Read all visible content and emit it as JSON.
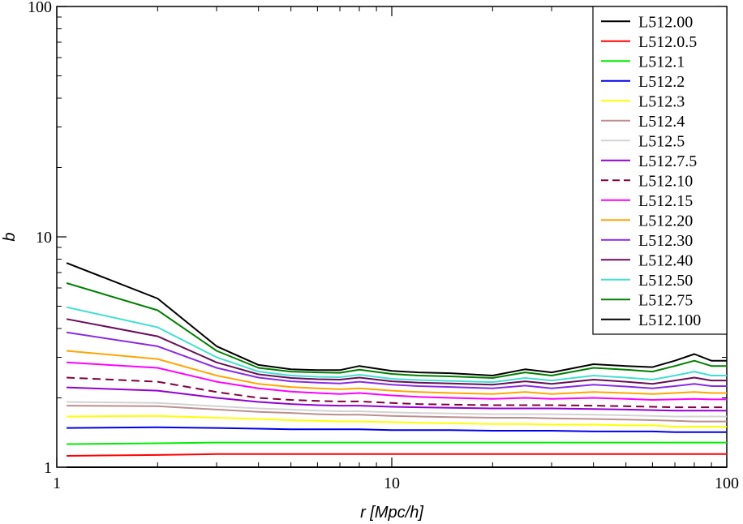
{
  "chart_data": {
    "type": "line",
    "xlabel": "r [Mpc/h]",
    "ylabel": "b",
    "xscale": "log",
    "yscale": "log",
    "xlim": [
      1,
      100
    ],
    "ylim": [
      1,
      100
    ],
    "x_ticks": [
      "1",
      "10",
      "100"
    ],
    "y_ticks": [
      "1",
      "10",
      "100"
    ],
    "grid": false,
    "legend_position": "top-right",
    "x": [
      1.07,
      2,
      3,
      4,
      5,
      6,
      7,
      8,
      10,
      12,
      15,
      20,
      25,
      30,
      40,
      50,
      60,
      70,
      80,
      90,
      100
    ],
    "series": [
      {
        "name": "L512.00",
        "color": "#000000",
        "dash": false,
        "values": [
          1.0,
          1.0,
          1.0,
          1.0,
          1.0,
          1.0,
          1.0,
          1.0,
          1.0,
          1.0,
          1.0,
          1.0,
          1.0,
          1.0,
          1.0,
          1.0,
          1.0,
          1.0,
          1.0,
          1.0,
          1.0
        ]
      },
      {
        "name": "L512.0.5",
        "color": "#ff0000",
        "dash": false,
        "values": [
          1.12,
          1.13,
          1.14,
          1.14,
          1.14,
          1.14,
          1.14,
          1.14,
          1.14,
          1.14,
          1.14,
          1.14,
          1.14,
          1.14,
          1.14,
          1.14,
          1.14,
          1.14,
          1.14,
          1.14,
          1.14
        ]
      },
      {
        "name": "L512.1",
        "color": "#00ee00",
        "dash": false,
        "values": [
          1.26,
          1.27,
          1.28,
          1.28,
          1.28,
          1.28,
          1.28,
          1.28,
          1.28,
          1.28,
          1.28,
          1.28,
          1.28,
          1.28,
          1.28,
          1.28,
          1.28,
          1.28,
          1.28,
          1.28,
          1.28
        ]
      },
      {
        "name": "L512.2",
        "color": "#0000ee",
        "dash": false,
        "values": [
          1.48,
          1.49,
          1.48,
          1.47,
          1.46,
          1.46,
          1.46,
          1.46,
          1.45,
          1.45,
          1.45,
          1.44,
          1.44,
          1.44,
          1.43,
          1.43,
          1.43,
          1.42,
          1.42,
          1.42,
          1.42
        ]
      },
      {
        "name": "L512.3",
        "color": "#ffff00",
        "dash": false,
        "values": [
          1.66,
          1.67,
          1.64,
          1.62,
          1.6,
          1.59,
          1.58,
          1.58,
          1.57,
          1.56,
          1.55,
          1.54,
          1.54,
          1.53,
          1.53,
          1.52,
          1.52,
          1.5,
          1.5,
          1.5,
          1.5
        ]
      },
      {
        "name": "L512.4",
        "color": "#bc8f8f",
        "dash": false,
        "values": [
          1.85,
          1.84,
          1.78,
          1.74,
          1.72,
          1.7,
          1.69,
          1.69,
          1.67,
          1.66,
          1.65,
          1.64,
          1.64,
          1.63,
          1.62,
          1.61,
          1.6,
          1.59,
          1.58,
          1.58,
          1.58
        ]
      },
      {
        "name": "L512.5",
        "color": "#d3d3d3",
        "dash": false,
        "values": [
          1.92,
          1.9,
          1.84,
          1.8,
          1.78,
          1.76,
          1.75,
          1.75,
          1.73,
          1.72,
          1.71,
          1.7,
          1.7,
          1.7,
          1.69,
          1.68,
          1.67,
          1.66,
          1.66,
          1.66,
          1.66
        ]
      },
      {
        "name": "L512.7.5",
        "color": "#9400d3",
        "dash": false,
        "values": [
          2.22,
          2.15,
          2.0,
          1.92,
          1.88,
          1.86,
          1.85,
          1.85,
          1.83,
          1.82,
          1.81,
          1.8,
          1.8,
          1.8,
          1.79,
          1.78,
          1.77,
          1.76,
          1.76,
          1.76,
          1.76
        ]
      },
      {
        "name": "L512.10",
        "color": "#800040",
        "dash": true,
        "values": [
          2.45,
          2.35,
          2.12,
          2.0,
          1.96,
          1.94,
          1.93,
          1.93,
          1.9,
          1.88,
          1.87,
          1.86,
          1.86,
          1.86,
          1.85,
          1.84,
          1.83,
          1.82,
          1.82,
          1.82,
          1.82
        ]
      },
      {
        "name": "L512.15",
        "color": "#ff00ff",
        "dash": false,
        "values": [
          2.85,
          2.7,
          2.35,
          2.2,
          2.13,
          2.1,
          2.08,
          2.1,
          2.05,
          2.02,
          2.0,
          1.98,
          2.0,
          1.98,
          2.0,
          1.98,
          1.96,
          1.97,
          1.98,
          1.97,
          1.97
        ]
      },
      {
        "name": "L512.20",
        "color": "#ffa500",
        "dash": false,
        "values": [
          3.2,
          2.95,
          2.5,
          2.3,
          2.23,
          2.2,
          2.18,
          2.2,
          2.15,
          2.12,
          2.1,
          2.08,
          2.12,
          2.08,
          2.12,
          2.1,
          2.08,
          2.1,
          2.12,
          2.1,
          2.1
        ]
      },
      {
        "name": "L512.30",
        "color": "#8a2be2",
        "dash": false,
        "values": [
          3.85,
          3.35,
          2.7,
          2.45,
          2.36,
          2.33,
          2.31,
          2.35,
          2.28,
          2.25,
          2.23,
          2.2,
          2.26,
          2.2,
          2.28,
          2.24,
          2.2,
          2.25,
          2.3,
          2.25,
          2.25
        ]
      },
      {
        "name": "L512.40",
        "color": "#6a0d5a",
        "dash": false,
        "values": [
          4.4,
          3.7,
          2.85,
          2.53,
          2.44,
          2.41,
          2.4,
          2.45,
          2.36,
          2.33,
          2.31,
          2.28,
          2.36,
          2.3,
          2.4,
          2.35,
          2.3,
          2.38,
          2.45,
          2.38,
          2.38
        ]
      },
      {
        "name": "L512.50",
        "color": "#40e0d0",
        "dash": false,
        "values": [
          4.95,
          4.05,
          3.0,
          2.6,
          2.5,
          2.47,
          2.46,
          2.52,
          2.42,
          2.39,
          2.37,
          2.34,
          2.44,
          2.38,
          2.5,
          2.45,
          2.4,
          2.5,
          2.6,
          2.5,
          2.5
        ]
      },
      {
        "name": "L512.75",
        "color": "#008000",
        "dash": false,
        "values": [
          6.3,
          4.8,
          3.2,
          2.7,
          2.6,
          2.58,
          2.57,
          2.65,
          2.54,
          2.5,
          2.48,
          2.44,
          2.58,
          2.5,
          2.7,
          2.65,
          2.6,
          2.75,
          2.9,
          2.75,
          2.75
        ]
      },
      {
        "name": "L512.100",
        "color": "#000000",
        "dash": false,
        "values": [
          7.7,
          5.4,
          3.35,
          2.78,
          2.66,
          2.64,
          2.64,
          2.75,
          2.62,
          2.58,
          2.56,
          2.5,
          2.66,
          2.58,
          2.8,
          2.75,
          2.72,
          2.9,
          3.1,
          2.9,
          2.9
        ]
      }
    ]
  }
}
